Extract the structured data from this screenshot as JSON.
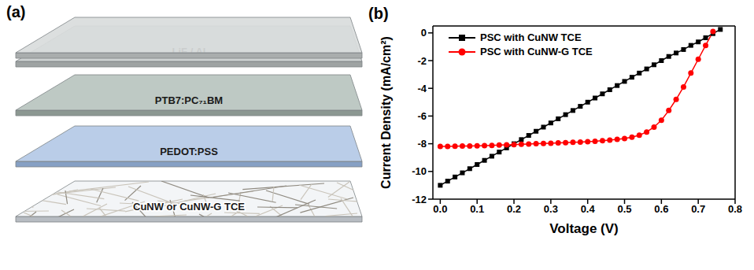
{
  "diagram": {
    "label": "(a)",
    "layers": [
      "LiF / Al",
      "PTB7:PC₇₁BM",
      "PEDOT:PSS",
      "CuNW or CuNW-G TCE"
    ]
  },
  "chart_data": {
    "label": "(b)",
    "type": "line",
    "x_label": "Voltage (V)",
    "y_label": "Current Density (mA/cm²)",
    "x": [
      0,
      0.02,
      0.04,
      0.06,
      0.08,
      0.1,
      0.12,
      0.14,
      0.16,
      0.18,
      0.2,
      0.22,
      0.24,
      0.26,
      0.28,
      0.3,
      0.32,
      0.34,
      0.36,
      0.38,
      0.4,
      0.42,
      0.44,
      0.46,
      0.48,
      0.5,
      0.52,
      0.54,
      0.56,
      0.58,
      0.6,
      0.62,
      0.64,
      0.66,
      0.68,
      0.7,
      0.72,
      0.74,
      0.76
    ],
    "series": [
      {
        "name": "PSC with CuNW TCE",
        "color": "#000000",
        "marker": "square",
        "values": [
          -11.0,
          -10.7,
          -10.4,
          -10.1,
          -9.8,
          -9.5,
          -9.2,
          -8.9,
          -8.6,
          -8.3,
          -8.0,
          -7.7,
          -7.4,
          -7.1,
          -6.8,
          -6.5,
          -6.2,
          -5.9,
          -5.6,
          -5.3,
          -5.0,
          -4.7,
          -4.4,
          -4.1,
          -3.8,
          -3.5,
          -3.2,
          -2.9,
          -2.6,
          -2.3,
          -2.0,
          -1.7,
          -1.45,
          -1.2,
          -0.9,
          -0.65,
          -0.35,
          -0.05,
          0.25
        ]
      },
      {
        "name": "PSC with CuNW-G TCE",
        "color": "#ff0000",
        "marker": "circle",
        "values": [
          -8.2,
          -8.19,
          -8.18,
          -8.17,
          -8.16,
          -8.15,
          -8.13,
          -8.12,
          -8.1,
          -8.08,
          -8.06,
          -8.04,
          -8.02,
          -8.0,
          -7.98,
          -7.96,
          -7.94,
          -7.92,
          -7.9,
          -7.88,
          -7.85,
          -7.82,
          -7.78,
          -7.74,
          -7.68,
          -7.62,
          -7.52,
          -7.38,
          -7.15,
          -6.8,
          -6.3,
          -5.6,
          -4.8,
          -3.9,
          -2.9,
          -1.9,
          -0.9,
          0.1,
          null
        ]
      }
    ],
    "xlim": [
      -0.02,
      0.8
    ],
    "xticks": [
      {
        "value": 0,
        "label": "0.0"
      },
      0.1,
      0.2,
      0.3,
      0.4,
      0.5,
      0.6,
      0.7,
      0.8
    ],
    "ylim": [
      -12,
      0.5
    ],
    "yticks": [
      -12,
      -10,
      -8,
      -6,
      -4,
      -2,
      0
    ],
    "legend": "upper left"
  }
}
